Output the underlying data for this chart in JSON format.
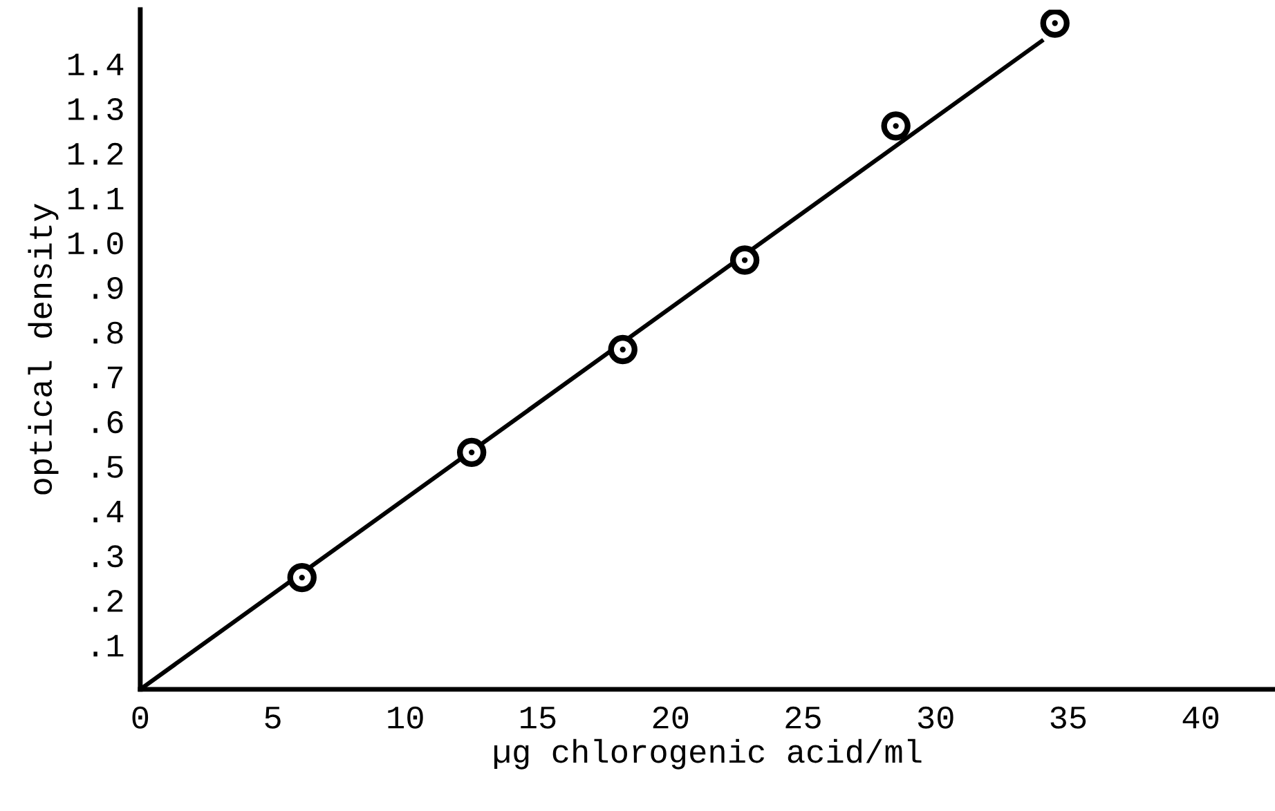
{
  "chart_data": {
    "type": "scatter",
    "xlabel": "µg chlorogenic acid/ml",
    "ylabel": "optical density",
    "xlim": [
      0,
      42.8
    ],
    "ylim": [
      0,
      1.52
    ],
    "xticks": [
      0,
      5,
      10,
      15,
      20,
      25,
      30,
      35,
      40
    ],
    "yticks": [
      {
        "value": 0.1,
        "label": ".1"
      },
      {
        "value": 0.2,
        "label": ".2"
      },
      {
        "value": 0.3,
        "label": ".3"
      },
      {
        "value": 0.4,
        "label": ".4"
      },
      {
        "value": 0.5,
        "label": ".5"
      },
      {
        "value": 0.6,
        "label": ".6"
      },
      {
        "value": 0.7,
        "label": ".7"
      },
      {
        "value": 0.8,
        "label": ".8"
      },
      {
        "value": 0.9,
        "label": ".9"
      },
      {
        "value": 1.0,
        "label": "1.0"
      },
      {
        "value": 1.1,
        "label": "1.1"
      },
      {
        "value": 1.2,
        "label": "1.2"
      },
      {
        "value": 1.3,
        "label": "1.3"
      },
      {
        "value": 1.4,
        "label": "1.4"
      }
    ],
    "series": [
      {
        "color": "#000000",
        "marker": "circle",
        "x": [
          6.1,
          12.5,
          18.2,
          22.8,
          28.5,
          34.5
        ],
        "values": [
          0.25,
          0.53,
          0.76,
          0.96,
          1.26,
          1.49
        ]
      },
      {
        "type": "line",
        "color": "#000000",
        "marker": "none",
        "line_style": "solid",
        "x": [
          0,
          34
        ],
        "values": [
          0,
          1.45
        ]
      }
    ],
    "grid": false,
    "legend": false
  }
}
